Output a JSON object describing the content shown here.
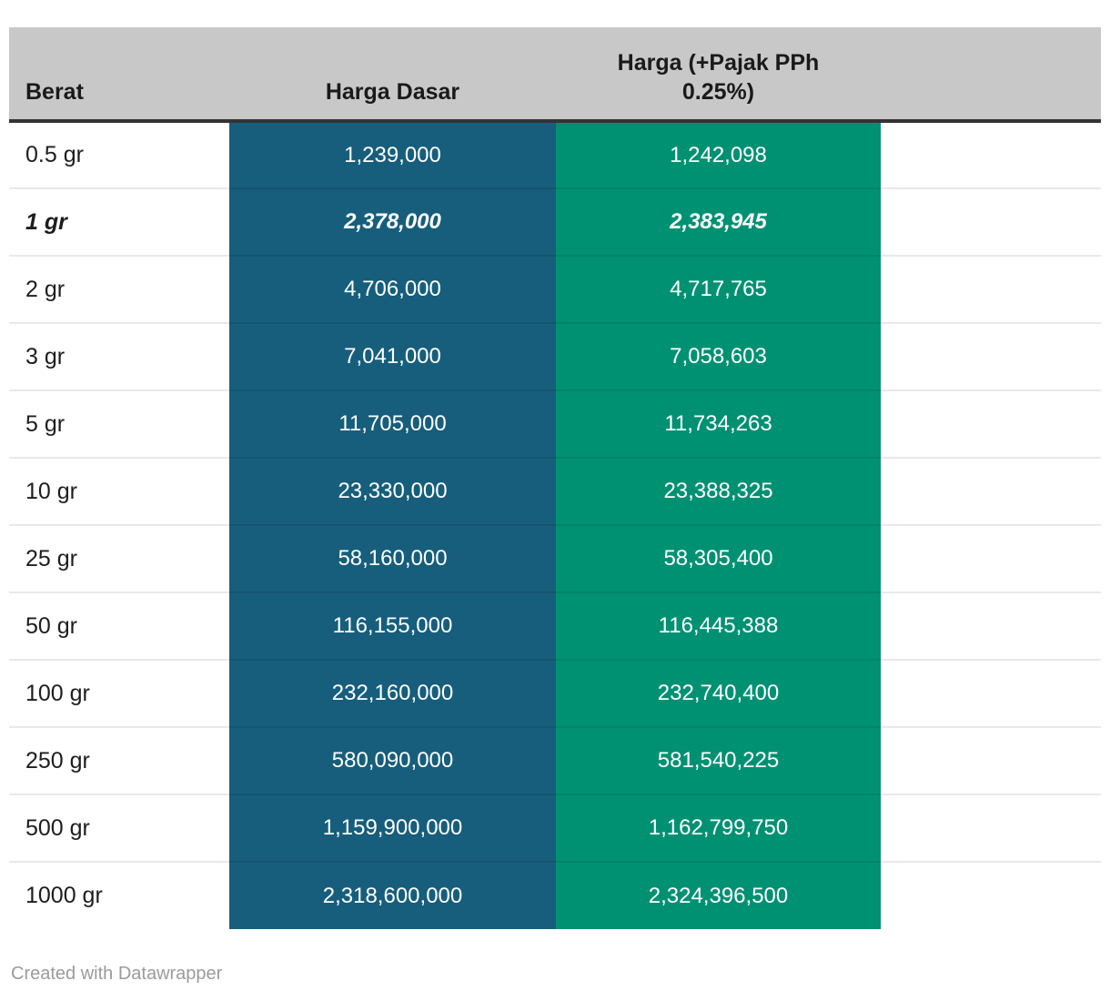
{
  "chart_data": {
    "type": "table",
    "title": "",
    "columns": [
      {
        "id": "berat",
        "label": "Berat"
      },
      {
        "id": "harga_dasar",
        "label": "Harga Dasar"
      },
      {
        "id": "harga_pajak",
        "label": "Harga (+Pajak PPh 0.25%)"
      }
    ],
    "rows": [
      {
        "berat": "0.5 gr",
        "harga_dasar": "1,239,000",
        "harga_pajak": "1,242,098",
        "harga_dasar_value": 1239000,
        "harga_pajak_value": 1242098,
        "highlight": false
      },
      {
        "berat": "1 gr",
        "harga_dasar": "2,378,000",
        "harga_pajak": "2,383,945",
        "harga_dasar_value": 2378000,
        "harga_pajak_value": 2383945,
        "highlight": true
      },
      {
        "berat": "2 gr",
        "harga_dasar": "4,706,000",
        "harga_pajak": "4,717,765",
        "harga_dasar_value": 4706000,
        "harga_pajak_value": 4717765,
        "highlight": false
      },
      {
        "berat": "3 gr",
        "harga_dasar": "7,041,000",
        "harga_pajak": "7,058,603",
        "harga_dasar_value": 7041000,
        "harga_pajak_value": 7058603,
        "highlight": false
      },
      {
        "berat": "5 gr",
        "harga_dasar": "11,705,000",
        "harga_pajak": "11,734,263",
        "harga_dasar_value": 11705000,
        "harga_pajak_value": 11734263,
        "highlight": false
      },
      {
        "berat": "10 gr",
        "harga_dasar": "23,330,000",
        "harga_pajak": "23,388,325",
        "harga_dasar_value": 23330000,
        "harga_pajak_value": 23388325,
        "highlight": false
      },
      {
        "berat": "25 gr",
        "harga_dasar": "58,160,000",
        "harga_pajak": "58,305,400",
        "harga_dasar_value": 58160000,
        "harga_pajak_value": 58305400,
        "highlight": false
      },
      {
        "berat": "50 gr",
        "harga_dasar": "116,155,000",
        "harga_pajak": "116,445,388",
        "harga_dasar_value": 116155000,
        "harga_pajak_value": 116445388,
        "highlight": false
      },
      {
        "berat": "100 gr",
        "harga_dasar": "232,160,000",
        "harga_pajak": "232,740,400",
        "harga_dasar_value": 232160000,
        "harga_pajak_value": 232740400,
        "highlight": false
      },
      {
        "berat": "250 gr",
        "harga_dasar": "580,090,000",
        "harga_pajak": "581,540,225",
        "harga_dasar_value": 580090000,
        "harga_pajak_value": 581540225,
        "highlight": false
      },
      {
        "berat": "500 gr",
        "harga_dasar": "1,159,900,000",
        "harga_pajak": "1,162,799,750",
        "harga_dasar_value": 1159900000,
        "harga_pajak_value": 1162799750,
        "highlight": false
      },
      {
        "berat": "1000 gr",
        "harga_dasar": "2,318,600,000",
        "harga_pajak": "2,324,396,500",
        "harga_dasar_value": 2318600000,
        "harga_pajak_value": 2324396500,
        "highlight": false
      }
    ],
    "colors": {
      "harga_dasar_column_bg": "#165e7c",
      "harga_pajak_column_bg": "#009173",
      "header_bg": "#c8c8c8",
      "value_text": "#ffffff"
    },
    "layout_hints": {
      "grid": "horizontal row separators",
      "legend": "none"
    }
  },
  "footer": {
    "attribution": "Created with Datawrapper"
  }
}
